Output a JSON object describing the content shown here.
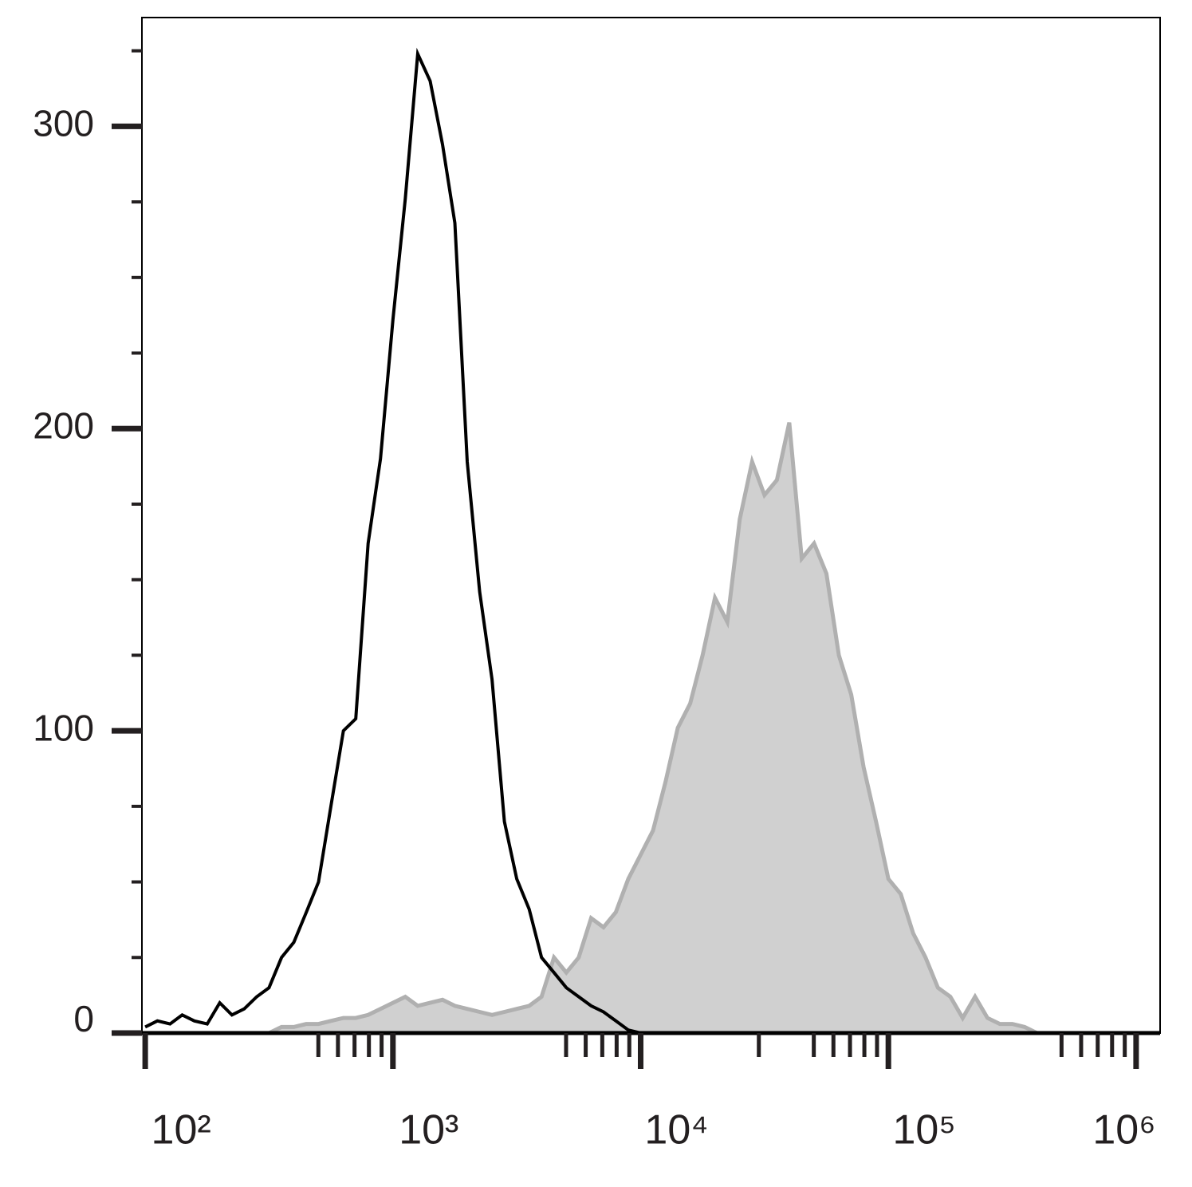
{
  "chart_data": {
    "type": "histogram-overlay",
    "xscale": "log",
    "xlim": [
      97,
      1250000
    ],
    "xticks": [
      {
        "value": 100,
        "label": "10²"
      },
      {
        "value": 1000,
        "label": "10³"
      },
      {
        "value": 10000,
        "label": "10⁴"
      },
      {
        "value": 100000,
        "label": "10⁵"
      },
      {
        "value": 1000000,
        "label": "10⁶"
      }
    ],
    "xminorticks": [
      500,
      600,
      700,
      800,
      900,
      5000,
      6000,
      7000,
      8000,
      9000,
      30000,
      50000,
      60000,
      70000,
      80000,
      90000,
      500000,
      600000,
      700000,
      800000,
      900000
    ],
    "ylim": [
      0,
      336
    ],
    "yticks": [
      0,
      100,
      200,
      300
    ],
    "yminorticks": [
      25,
      50,
      75,
      125,
      150,
      175,
      225,
      250,
      275,
      325
    ],
    "x": [
      100,
      112,
      126,
      141,
      158,
      178,
      200,
      224,
      251,
      282,
      316,
      355,
      398,
      447,
      501,
      562,
      631,
      708,
      794,
      891,
      1000,
      1122,
      1259,
      1413,
      1585,
      1778,
      1995,
      2239,
      2512,
      2818,
      3162,
      3548,
      3981,
      4467,
      5012,
      5623,
      6310,
      7079,
      7943,
      8913,
      10000,
      11220,
      12589,
      14125,
      15849,
      17783,
      19953,
      22387,
      25119,
      28184,
      31623,
      35481,
      39811,
      44668,
      50119,
      56234,
      63096,
      70795,
      79433,
      89125,
      100000,
      112202,
      125893,
      141254,
      158489,
      177828,
      199526,
      223872,
      251189,
      281838,
      316228,
      354813,
      398107,
      446684,
      501187,
      562341,
      630957,
      707946,
      794328,
      891251,
      1000000,
      1122018
    ],
    "series": [
      {
        "color": "#b0b0b0",
        "fill": "#d0d0d0",
        "values": [
          0,
          0,
          0,
          0,
          0,
          0,
          0,
          0,
          0,
          0,
          0,
          2,
          2,
          3,
          3,
          4,
          5,
          5,
          6,
          8,
          10,
          12,
          9,
          10,
          11,
          9,
          8,
          7,
          6,
          7,
          8,
          9,
          12,
          25,
          20,
          25,
          38,
          35,
          40,
          51,
          59,
          67,
          83,
          101,
          109,
          125,
          144,
          136,
          170,
          189,
          178,
          183,
          202,
          157,
          162,
          152,
          125,
          112,
          88,
          70,
          51,
          46,
          33,
          25,
          15,
          12,
          5,
          12,
          5,
          3,
          3,
          2,
          0,
          0,
          0,
          0,
          0,
          0,
          0,
          0,
          0,
          0
        ]
      },
      {
        "color": "#000000",
        "values": [
          2,
          4,
          3,
          6,
          4,
          3,
          10,
          6,
          8,
          12,
          15,
          25,
          30,
          40,
          50,
          75,
          100,
          104,
          162,
          190,
          236,
          276,
          324,
          315,
          294,
          268,
          189,
          146,
          117,
          70,
          51,
          41,
          25,
          20,
          15,
          12,
          9,
          7,
          4,
          1,
          0,
          0,
          0,
          0,
          0,
          0,
          0,
          0,
          0,
          0,
          0,
          0,
          0,
          0,
          0,
          0,
          0,
          0,
          0,
          0,
          0,
          0,
          0,
          0,
          0,
          0,
          0,
          0,
          0,
          0,
          0,
          0,
          0,
          0,
          0,
          0,
          0,
          0,
          0,
          0,
          0,
          0
        ]
      }
    ]
  }
}
